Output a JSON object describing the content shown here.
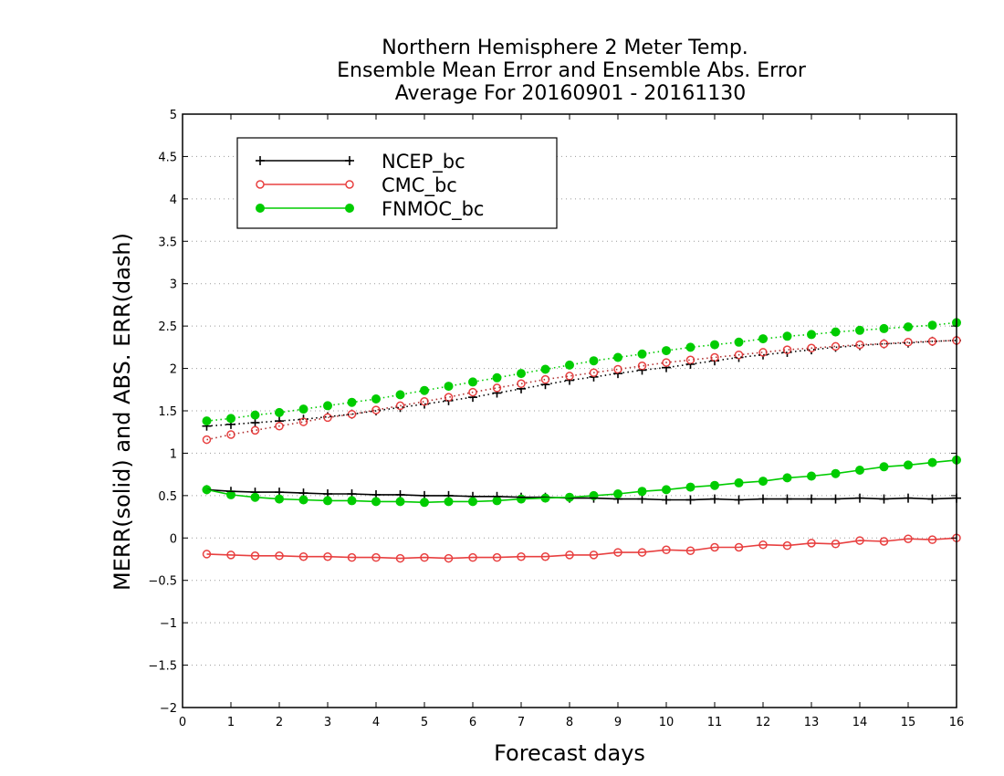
{
  "chart_data": {
    "type": "line",
    "title_lines": [
      "Northern Hemisphere 2 Meter Temp.",
      "Ensemble Mean Error and Ensemble Abs. Error",
      "Average For 20160901 - 20161130"
    ],
    "xlabel": "Forecast days",
    "ylabel": "MERR(solid) and ABS. ERR(dash)",
    "xlim": [
      0,
      16
    ],
    "ylim": [
      -2,
      5
    ],
    "xticks": [
      "0",
      "1",
      "2",
      "3",
      "4",
      "5",
      "6",
      "7",
      "8",
      "9",
      "10",
      "11",
      "12",
      "13",
      "14",
      "15",
      "16"
    ],
    "yticks": [
      "-2",
      "-1.5",
      "-1",
      "-0.5",
      "0",
      "0.5",
      "1",
      "1.5",
      "2",
      "2.5",
      "3",
      "3.5",
      "4",
      "4.5",
      "5"
    ],
    "grid": "horizontal dotted",
    "legend_position": "top-left",
    "x": [
      0.5,
      1,
      1.5,
      2,
      2.5,
      3,
      3.5,
      4,
      4.5,
      5,
      5.5,
      6,
      6.5,
      7,
      7.5,
      8,
      8.5,
      9,
      9.5,
      10,
      10.5,
      11,
      11.5,
      12,
      12.5,
      13,
      13.5,
      14,
      14.5,
      15,
      15.5,
      16
    ],
    "series": [
      {
        "name": "NCEP_bc",
        "color": "#000000",
        "marker": "plus",
        "merr": [
          0.57,
          0.55,
          0.54,
          0.54,
          0.53,
          0.52,
          0.52,
          0.51,
          0.51,
          0.5,
          0.5,
          0.49,
          0.49,
          0.48,
          0.48,
          0.47,
          0.47,
          0.46,
          0.46,
          0.45,
          0.45,
          0.46,
          0.45,
          0.46,
          0.46,
          0.46,
          0.46,
          0.47,
          0.46,
          0.47,
          0.46,
          0.47
        ],
        "abs": [
          1.32,
          1.34,
          1.36,
          1.38,
          1.4,
          1.43,
          1.46,
          1.5,
          1.54,
          1.58,
          1.62,
          1.66,
          1.71,
          1.76,
          1.81,
          1.86,
          1.9,
          1.94,
          1.98,
          2.01,
          2.05,
          2.09,
          2.13,
          2.16,
          2.19,
          2.22,
          2.25,
          2.27,
          2.29,
          2.3,
          2.32,
          2.33
        ]
      },
      {
        "name": "CMC_bc",
        "color": "#e84040",
        "marker": "open-circle",
        "merr": [
          -0.19,
          -0.2,
          -0.21,
          -0.21,
          -0.22,
          -0.22,
          -0.23,
          -0.23,
          -0.24,
          -0.23,
          -0.24,
          -0.23,
          -0.23,
          -0.22,
          -0.22,
          -0.2,
          -0.2,
          -0.17,
          -0.17,
          -0.14,
          -0.15,
          -0.11,
          -0.11,
          -0.08,
          -0.09,
          -0.06,
          -0.07,
          -0.03,
          -0.04,
          -0.01,
          -0.02,
          0.0
        ],
        "abs": [
          1.16,
          1.22,
          1.27,
          1.32,
          1.37,
          1.42,
          1.46,
          1.51,
          1.56,
          1.61,
          1.66,
          1.72,
          1.77,
          1.82,
          1.87,
          1.91,
          1.95,
          1.99,
          2.03,
          2.07,
          2.1,
          2.13,
          2.16,
          2.19,
          2.22,
          2.24,
          2.26,
          2.28,
          2.29,
          2.31,
          2.32,
          2.33
        ]
      },
      {
        "name": "FNMOC_bc",
        "color": "#00cc00",
        "marker": "filled-circle",
        "merr": [
          0.57,
          0.51,
          0.48,
          0.46,
          0.45,
          0.44,
          0.44,
          0.43,
          0.43,
          0.42,
          0.43,
          0.43,
          0.44,
          0.46,
          0.47,
          0.48,
          0.5,
          0.52,
          0.55,
          0.57,
          0.6,
          0.62,
          0.65,
          0.67,
          0.71,
          0.73,
          0.76,
          0.8,
          0.84,
          0.86,
          0.89,
          0.92
        ],
        "abs": [
          1.38,
          1.41,
          1.45,
          1.48,
          1.52,
          1.56,
          1.6,
          1.64,
          1.69,
          1.74,
          1.79,
          1.84,
          1.89,
          1.94,
          1.99,
          2.04,
          2.09,
          2.13,
          2.17,
          2.21,
          2.25,
          2.28,
          2.31,
          2.35,
          2.38,
          2.4,
          2.43,
          2.45,
          2.47,
          2.49,
          2.51,
          2.54
        ]
      }
    ]
  }
}
